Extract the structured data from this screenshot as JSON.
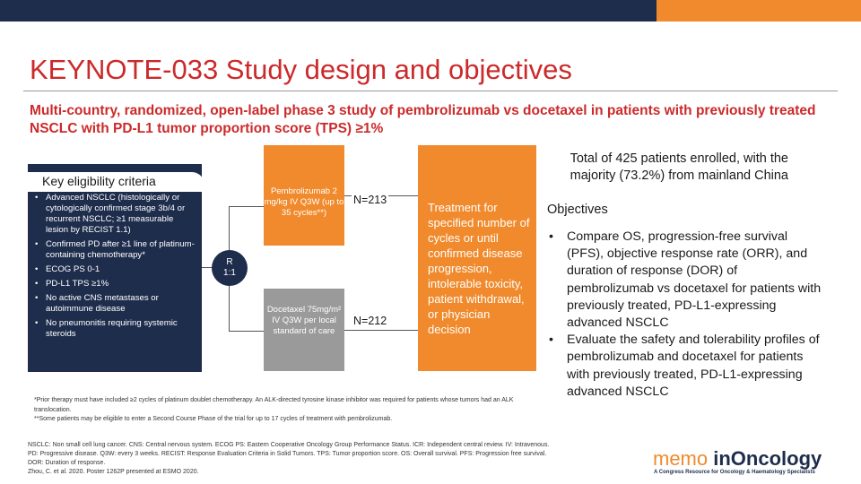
{
  "header": {
    "title": "KEYNOTE-033 Study design and objectives",
    "subtitle": "Multi-country, randomized, open-label phase 3 study of pembrolizumab vs docetaxel in patients with previously treated NSCLC with PD-L1 tumor proportion score (TPS) ≥1%"
  },
  "eligibility": {
    "heading": "Key eligibility criteria",
    "items": [
      "Advanced NSCLC (histologically or cytologically confirmed stage 3b/4 or recurrent NSCLC; ≥1 measurable lesion by RECIST 1.1)",
      "Confirmed PD after ≥1 line of platinum-containing chemotherapy*",
      "ECOG PS 0-1",
      "PD-L1 TPS ≥1%",
      "No active CNS metastases or autoimmune disease",
      "No pneumonitis requiring systemic steroids"
    ]
  },
  "randomization": {
    "line1": "R",
    "line2": "1:1"
  },
  "arms": [
    {
      "label": "Pembrolizumab 2 mg/kg IV Q3W (up to 35 cycles**)",
      "n": "N=213"
    },
    {
      "label": "Docetaxel 75mg/m² IV Q3W per local standard of care",
      "n": "N=212"
    }
  ],
  "treatment": "Treatment for specified number of cycles or until confirmed disease progression, intolerable toxicity, patient withdrawal, or physician decision",
  "total": "Total of 425 patients enrolled, with the majority (73.2%) from mainland China",
  "objectives": {
    "heading": "Objectives",
    "items": [
      "Compare OS, progression-free survival (PFS), objective response rate (ORR), and duration of response (DOR) of pembrolizumab vs docetaxel for patients with previously treated, PD-L1-expressing advanced NSCLC",
      "Evaluate the safety and tolerability profiles of pembrolizumab and docetaxel for patients with previously treated, PD-L1-expressing advanced NSCLC"
    ]
  },
  "footnotes": [
    "*Prior therapy must have included ≥2 cycles of platinum doublet chemotherapy. An ALK-directed tyrosine kinase inhibitor was required for patients whose tumors had an ALK translocation.",
    "**Some patients may be eligible to enter a Second Course Phase of the trial for up to 17 cycles of treatment with pembrolizumab."
  ],
  "abbreviations": [
    "NSCLC: Non small cell lung cancer. CNS: Central nervous system. ECOG PS: Eastern Cooperative Oncology Group Performance Status. ICR: Independent central review. IV: Intravenous.",
    "PD: Progressive disease. Q3W: every 3 weeks. RECIST: Response Evaluation Criteria in Solid Tumors. TPS: Tumor proportion score. OS: Overall survival. PFS: Progression free survival.",
    "DOR: Duration of response.",
    "Zhou, C. et al. 2020. Poster 1262P presented at ESMO 2020."
  ],
  "logo": {
    "memo": "memo",
    "brand": "inOncology",
    "tagline": "A Congress Resource for Oncology & Haematology Specialists"
  },
  "colors": {
    "navy": "#1f2d4d",
    "orange": "#f08a2c",
    "red": "#cc2a2a",
    "grey": "#9a9a9a"
  }
}
